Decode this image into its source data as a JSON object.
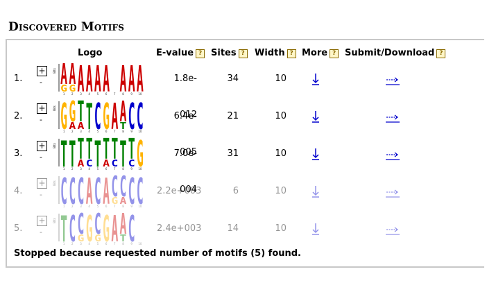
{
  "section_title": "Discovered Motifs",
  "headers": {
    "logo": "Logo",
    "evalue": "E-value",
    "sites": "Sites",
    "width": "Width",
    "more": "More",
    "submit": "Submit/Download",
    "help": "?"
  },
  "controls": {
    "expand": "+",
    "collapse": "-"
  },
  "logo_axis": [
    "Bits",
    "1",
    "2",
    "3",
    "4",
    "5",
    "6",
    "7",
    "8",
    "9",
    "10"
  ],
  "colors": {
    "A": "#cc0000",
    "C": "#0000cc",
    "G": "#ffb300",
    "T": "#008000",
    "link": "#0000cc",
    "help_border": "#8a6a00",
    "help_bg": "#fff6c8",
    "panel_border": "#c8c8c8"
  },
  "motifs": [
    {
      "num": "1.",
      "evalue": "1.8e-012",
      "sites": "34",
      "width": "10",
      "faded": false,
      "logo": [
        [
          "A",
          "G"
        ],
        [
          "A",
          "G"
        ],
        [
          "A"
        ],
        [
          "A"
        ],
        [
          "A"
        ],
        [
          "A"
        ],
        [],
        [
          "A"
        ],
        [
          "A"
        ],
        [
          "A"
        ]
      ]
    },
    {
      "num": "2.",
      "evalue": "6.4e-005",
      "sites": "21",
      "width": "10",
      "faded": false,
      "logo": [
        [
          "G"
        ],
        [
          "G",
          "A"
        ],
        [
          "T",
          "A"
        ],
        [
          "T"
        ],
        [
          "C"
        ],
        [
          "G"
        ],
        [
          "A"
        ],
        [
          "A",
          "T"
        ],
        [
          "C"
        ],
        [
          "C"
        ]
      ]
    },
    {
      "num": "3.",
      "evalue": "7.0e-004",
      "sites": "31",
      "width": "10",
      "faded": false,
      "logo": [
        [
          "T"
        ],
        [
          "T"
        ],
        [
          "T",
          "A"
        ],
        [
          "T",
          "C"
        ],
        [
          "T"
        ],
        [
          "T",
          "A"
        ],
        [
          "T",
          "C"
        ],
        [
          "T"
        ],
        [
          "T",
          "C"
        ],
        [
          "G"
        ]
      ]
    },
    {
      "num": "4.",
      "evalue": "2.2e+003",
      "sites": "6",
      "width": "10",
      "faded": true,
      "logo": [
        [
          "C"
        ],
        [
          "C"
        ],
        [
          "C"
        ],
        [
          "A"
        ],
        [
          "C"
        ],
        [
          "A"
        ],
        [
          "C",
          "G"
        ],
        [
          "C",
          "A"
        ],
        [
          "C"
        ],
        [
          "C"
        ]
      ]
    },
    {
      "num": "5.",
      "evalue": "2.4e+003",
      "sites": "14",
      "width": "10",
      "faded": true,
      "logo": [
        [
          "T"
        ],
        [
          "C"
        ],
        [
          "C",
          "G"
        ],
        [
          "G"
        ],
        [
          "C",
          "G"
        ],
        [
          "G"
        ],
        [
          "A"
        ],
        [
          "A",
          "T"
        ],
        [
          "C"
        ],
        []
      ]
    }
  ],
  "footer": "Stopped because requested number of motifs (5) found."
}
